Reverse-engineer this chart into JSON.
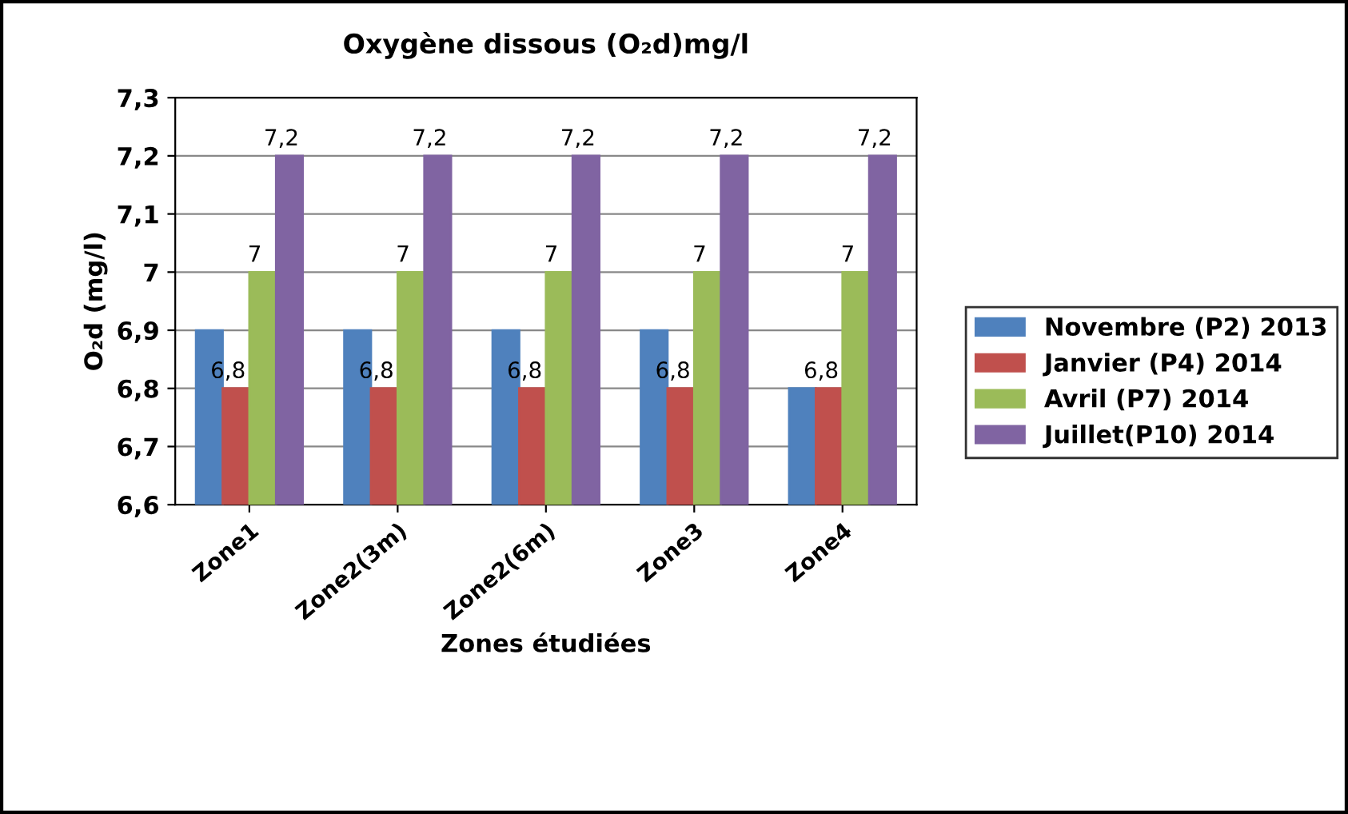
{
  "chart_data": {
    "type": "bar",
    "title": "Oxygène dissous (O₂d)mg/l",
    "xlabel": "Zones étudiées",
    "ylabel": "O₂d (mg/l)",
    "categories": [
      "Zone1",
      "Zone2(3m)",
      "Zone2(6m)",
      "Zone3",
      "Zone4"
    ],
    "series": [
      {
        "name": "Novembre (P2) 2013",
        "color": "#4f81bd",
        "values": [
          6.9,
          6.9,
          6.9,
          6.9,
          6.8
        ]
      },
      {
        "name": "Janvier (P4) 2014",
        "color": "#c0504d",
        "values": [
          6.8,
          6.8,
          6.8,
          6.8,
          6.8
        ],
        "value_labels": [
          "6,8",
          "6,8",
          "6,8",
          "6,8",
          "6,8"
        ]
      },
      {
        "name": "Avril (P7) 2014",
        "color": "#9bbb59",
        "values": [
          7,
          7,
          7,
          7,
          7
        ],
        "value_labels": [
          "7",
          "7",
          "7",
          "7",
          "7"
        ]
      },
      {
        "name": "Juillet(P10) 2014",
        "color": "#8064a2",
        "values": [
          7.2,
          7.2,
          7.2,
          7.2,
          7.2
        ],
        "value_labels": [
          "7,2",
          "7,2",
          "7,2",
          "7,2",
          "7,2"
        ]
      }
    ],
    "ylim": [
      6.6,
      7.3
    ],
    "yticks": [
      {
        "value": 6.6,
        "label": "6,6"
      },
      {
        "value": 6.7,
        "label": "6,7"
      },
      {
        "value": 6.8,
        "label": "6,8"
      },
      {
        "value": 6.9,
        "label": "6,9"
      },
      {
        "value": 7,
        "label": "7"
      },
      {
        "value": 7.1,
        "label": "7,1"
      },
      {
        "value": 7.2,
        "label": "7,2"
      },
      {
        "value": 7.3,
        "label": "7,3"
      }
    ],
    "grid": "y",
    "legend": "right"
  }
}
